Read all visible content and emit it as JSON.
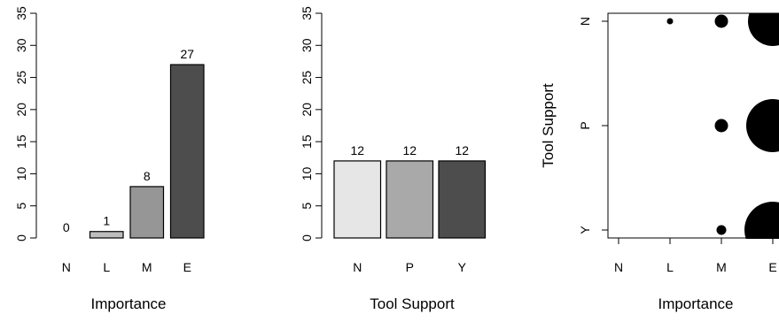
{
  "chart_data": [
    {
      "type": "bar",
      "categories": [
        "N",
        "L",
        "M",
        "E"
      ],
      "values": [
        0,
        1,
        8,
        27
      ],
      "data_labels": [
        "0",
        "1",
        "8",
        "27"
      ],
      "xlabel": "Importance",
      "ylabel": "",
      "ylim": [
        0,
        35
      ],
      "yticks": [
        "0",
        "5",
        "10",
        "15",
        "20",
        "25",
        "30",
        "35"
      ],
      "colors": [
        "#e6e6e6",
        "#bdbdbd",
        "#969696",
        "#4d4d4d"
      ]
    },
    {
      "type": "bar",
      "categories": [
        "N",
        "P",
        "Y"
      ],
      "values": [
        12,
        12,
        12
      ],
      "data_labels": [
        "12",
        "12",
        "12"
      ],
      "xlabel": "Tool Support",
      "ylabel": "",
      "ylim": [
        0,
        35
      ],
      "yticks": [
        "0",
        "5",
        "10",
        "15",
        "20",
        "25",
        "30",
        "35"
      ],
      "colors": [
        "#e6e6e6",
        "#a9a9a9",
        "#4d4d4d"
      ]
    },
    {
      "type": "scatter",
      "xcategories": [
        "N",
        "L",
        "M",
        "E"
      ],
      "ycategories": [
        "N",
        "P",
        "Y"
      ],
      "xlabel": "Importance",
      "ylabel": "Tool Support",
      "points": [
        {
          "x": "L",
          "y": "N",
          "count": 1
        },
        {
          "x": "M",
          "y": "N",
          "count": 3
        },
        {
          "x": "E",
          "y": "N",
          "count": 8
        },
        {
          "x": "M",
          "y": "P",
          "count": 3
        },
        {
          "x": "E",
          "y": "P",
          "count": 9
        },
        {
          "x": "M",
          "y": "Y",
          "count": 2
        },
        {
          "x": "E",
          "y": "Y",
          "count": 10
        }
      ]
    }
  ]
}
